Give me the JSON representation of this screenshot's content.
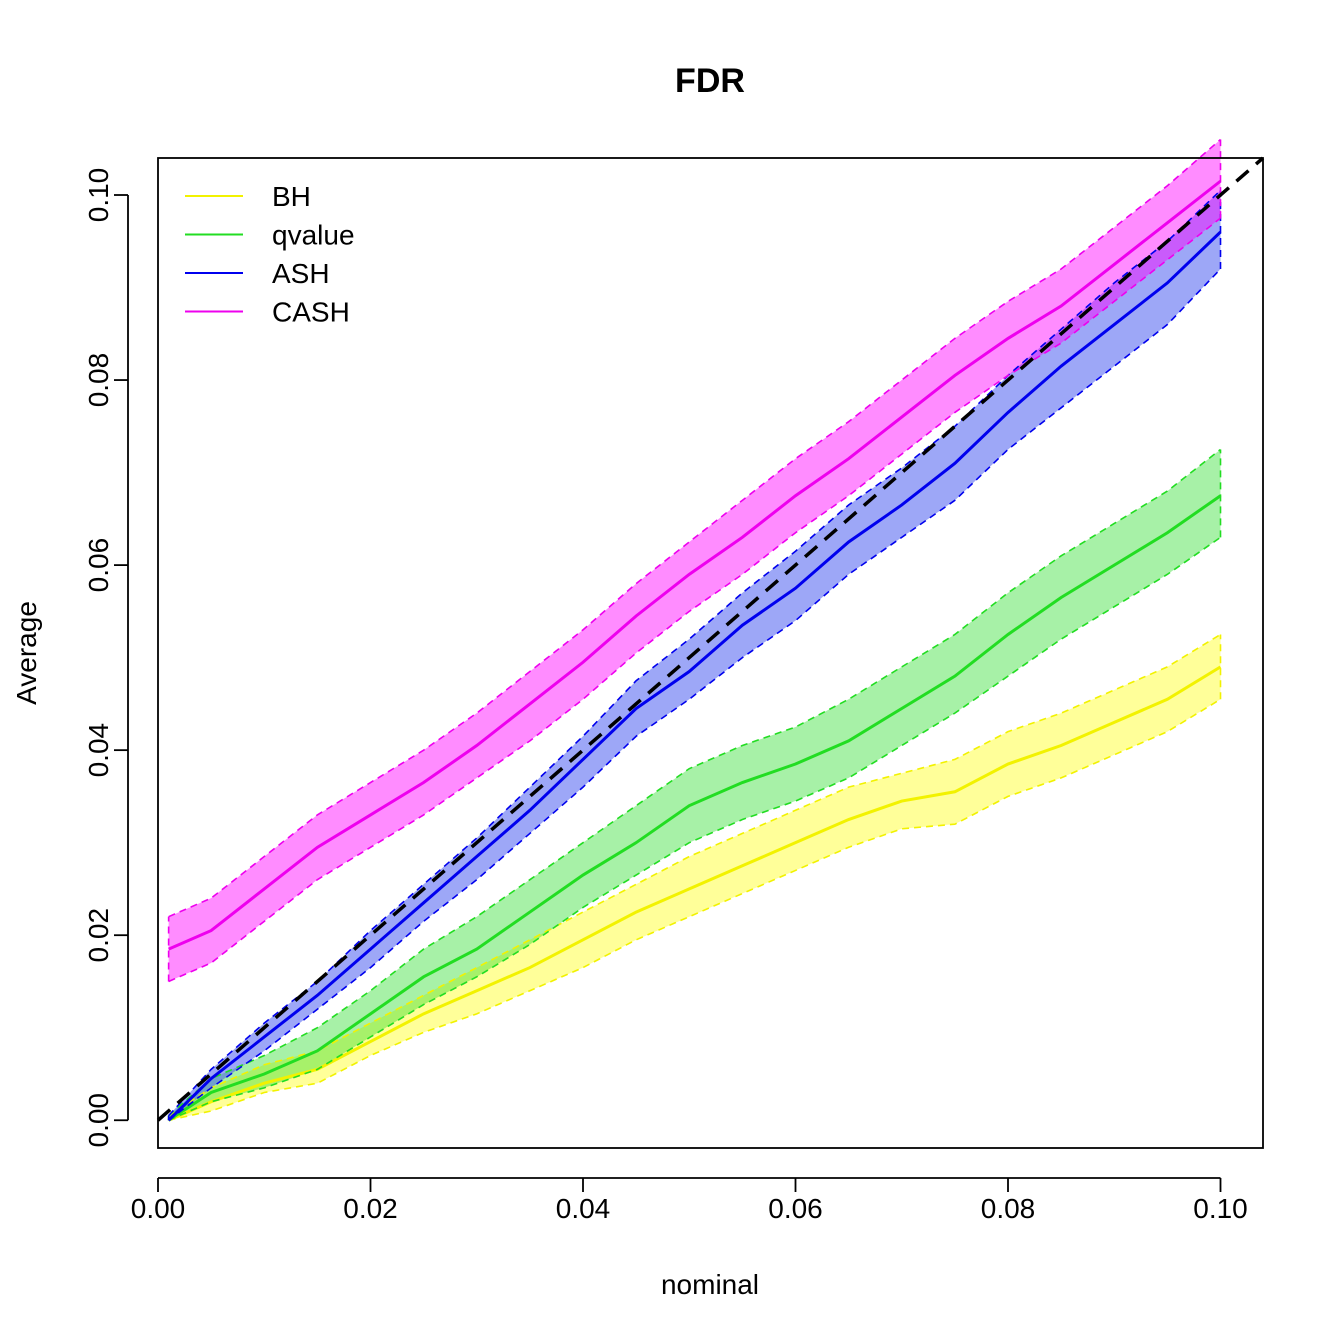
{
  "chart_data": {
    "type": "line",
    "title": "FDR",
    "xlabel": "nominal",
    "ylabel": "Average",
    "xlim": [
      0.0,
      0.104
    ],
    "ylim": [
      -0.003,
      0.104
    ],
    "x_ticks": [
      "0.00",
      "0.02",
      "0.04",
      "0.06",
      "0.08",
      "0.10"
    ],
    "y_ticks": [
      "0.00",
      "0.02",
      "0.04",
      "0.06",
      "0.08",
      "0.10"
    ],
    "x_tick_values": [
      0.0,
      0.02,
      0.04,
      0.06,
      0.08,
      0.1
    ],
    "y_tick_values": [
      0.0,
      0.02,
      0.04,
      0.06,
      0.08,
      0.1
    ],
    "legend_position": "top-left",
    "grid": false,
    "reference_line": {
      "from": [
        0.0,
        0.0
      ],
      "to": [
        0.104,
        0.104
      ],
      "style": "dashed",
      "color": "#000000"
    },
    "x": [
      0.001,
      0.005,
      0.01,
      0.015,
      0.02,
      0.025,
      0.03,
      0.035,
      0.04,
      0.045,
      0.05,
      0.055,
      0.06,
      0.065,
      0.07,
      0.075,
      0.08,
      0.085,
      0.09,
      0.095,
      0.1
    ],
    "series": [
      {
        "name": "BH",
        "color": "#f2f200",
        "fill": "rgba(255,255,0,0.40)",
        "mean": [
          0.0,
          0.002,
          0.004,
          0.0055,
          0.0085,
          0.0115,
          0.014,
          0.0165,
          0.0195,
          0.0225,
          0.025,
          0.0275,
          0.03,
          0.0325,
          0.0345,
          0.0355,
          0.0385,
          0.0405,
          0.043,
          0.0455,
          0.049
        ],
        "lower": [
          0.0,
          0.001,
          0.003,
          0.004,
          0.007,
          0.0095,
          0.0115,
          0.014,
          0.0165,
          0.0195,
          0.022,
          0.0245,
          0.027,
          0.0295,
          0.0315,
          0.032,
          0.035,
          0.037,
          0.0395,
          0.042,
          0.0455
        ],
        "upper": [
          0.0005,
          0.0035,
          0.006,
          0.0075,
          0.0105,
          0.0135,
          0.0165,
          0.0195,
          0.0225,
          0.0255,
          0.0285,
          0.031,
          0.0335,
          0.036,
          0.0375,
          0.039,
          0.042,
          0.044,
          0.0465,
          0.049,
          0.0525
        ]
      },
      {
        "name": "qvalue",
        "color": "#22dd22",
        "fill": "rgba(34,220,34,0.40)",
        "mean": [
          0.0,
          0.003,
          0.005,
          0.0075,
          0.0115,
          0.0155,
          0.0185,
          0.0225,
          0.0265,
          0.03,
          0.034,
          0.0365,
          0.0385,
          0.041,
          0.0445,
          0.048,
          0.0525,
          0.0565,
          0.06,
          0.0635,
          0.0675
        ],
        "lower": [
          0.0,
          0.002,
          0.0035,
          0.0055,
          0.009,
          0.0125,
          0.0155,
          0.019,
          0.023,
          0.0265,
          0.03,
          0.0325,
          0.0345,
          0.037,
          0.0405,
          0.044,
          0.048,
          0.052,
          0.0555,
          0.059,
          0.063
        ],
        "upper": [
          0.0005,
          0.0045,
          0.007,
          0.01,
          0.014,
          0.0185,
          0.022,
          0.026,
          0.03,
          0.034,
          0.038,
          0.0405,
          0.0425,
          0.0455,
          0.049,
          0.0525,
          0.057,
          0.061,
          0.0645,
          0.068,
          0.0725
        ]
      },
      {
        "name": "ASH",
        "color": "#0000ee",
        "fill": "rgba(60,80,240,0.50)",
        "mean": [
          0.0,
          0.0045,
          0.009,
          0.0135,
          0.0185,
          0.0235,
          0.0285,
          0.0335,
          0.039,
          0.0445,
          0.0485,
          0.0535,
          0.0575,
          0.0625,
          0.0665,
          0.071,
          0.0765,
          0.0815,
          0.086,
          0.0905,
          0.096
        ],
        "lower": [
          0.0,
          0.0035,
          0.0075,
          0.012,
          0.0165,
          0.0215,
          0.026,
          0.031,
          0.036,
          0.0415,
          0.0455,
          0.05,
          0.054,
          0.059,
          0.063,
          0.067,
          0.0725,
          0.077,
          0.0815,
          0.086,
          0.092
        ],
        "upper": [
          0.0005,
          0.0055,
          0.0105,
          0.015,
          0.0205,
          0.0255,
          0.0305,
          0.036,
          0.0415,
          0.0475,
          0.052,
          0.057,
          0.0615,
          0.0665,
          0.0705,
          0.075,
          0.0805,
          0.0855,
          0.0905,
          0.095,
          0.1005
        ]
      },
      {
        "name": "CASH",
        "color": "#ee00ee",
        "fill": "rgba(255,0,255,0.45)",
        "mean": [
          0.0185,
          0.0205,
          0.025,
          0.0295,
          0.033,
          0.0365,
          0.0405,
          0.045,
          0.0495,
          0.0545,
          0.059,
          0.063,
          0.0675,
          0.0715,
          0.076,
          0.0805,
          0.0845,
          0.088,
          0.0925,
          0.097,
          0.1015
        ],
        "lower": [
          0.015,
          0.017,
          0.0215,
          0.026,
          0.0295,
          0.033,
          0.037,
          0.041,
          0.0455,
          0.0505,
          0.055,
          0.059,
          0.0635,
          0.0675,
          0.072,
          0.0765,
          0.0805,
          0.084,
          0.0885,
          0.093,
          0.0975
        ],
        "upper": [
          0.022,
          0.024,
          0.0285,
          0.033,
          0.0365,
          0.04,
          0.044,
          0.0485,
          0.053,
          0.058,
          0.0625,
          0.067,
          0.0715,
          0.0755,
          0.08,
          0.0845,
          0.0885,
          0.092,
          0.0965,
          0.101,
          0.106
        ]
      }
    ]
  }
}
